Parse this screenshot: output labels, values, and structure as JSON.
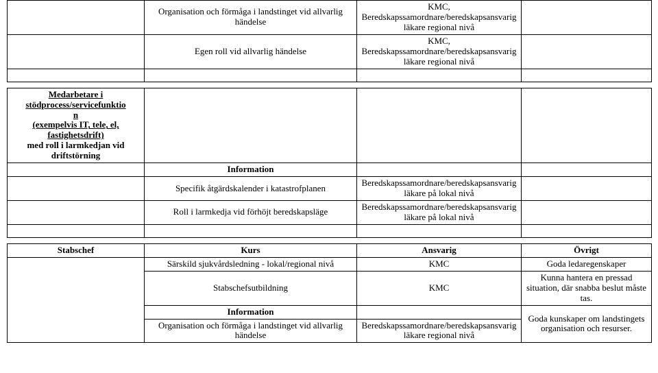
{
  "table1": {
    "rows": [
      {
        "c1": "",
        "c2": "Organisation och förmåga i landstinget vid allvarlig händelse",
        "c3": "KMC, Beredskapssamordnare/beredskapsansvarig läkare regional nivå",
        "c4": ""
      },
      {
        "c1": "",
        "c2": "Egen roll vid allvarlig händelse",
        "c3": "KMC, Beredskapssamordnare/beredskapsansvarig läkare regional nivå",
        "c4": ""
      }
    ]
  },
  "table2": {
    "header_c1_line1": "Medarbetare i",
    "header_c1_line2": "stödprocess/servicefunktio",
    "header_c1_line3": "n",
    "header_c1_line4": "(exempelvis IT, tele, el,",
    "header_c1_line5": "fastighetsdrift)",
    "header_c1_line6": "med roll i larmkedjan vid",
    "header_c1_line7": "driftstörning",
    "info_label": "Information",
    "rows": [
      {
        "c1": "",
        "c2": "Specifik åtgärdskalender i katastrofplanen",
        "c3": "Beredskapssamordnare/beredskapsansvarig läkare på lokal nivå",
        "c4": ""
      },
      {
        "c1": "",
        "c2": "Roll i larmkedja vid förhöjt beredskapsläge",
        "c3": "Beredskapssamordnare/beredskapsansvarig läkare på lokal nivå",
        "c4": ""
      }
    ]
  },
  "table3": {
    "header": {
      "c1": "Stabschef",
      "c2": "Kurs",
      "c3": "Ansvarig",
      "c4": "Övrigt"
    },
    "info_label": "Information",
    "rowA": {
      "c2": "Särskild sjukvårdsledning - lokal/regional nivå",
      "c3": "KMC",
      "c4": "Goda ledaregenskaper"
    },
    "rowB": {
      "c2": "Stabschefsutbildning",
      "c3": "KMC",
      "c4": "Kunna hantera en pressad situation, där snabba beslut måste tas."
    },
    "rowC": {
      "c4": "Goda kunskaper om landstingets organisation och resurser."
    },
    "rowD": {
      "c2": "Organisation och förmåga i landstinget vid allvarlig händelse",
      "c3": "Beredskapssamordnare/beredskapsansvarig läkare regional nivå"
    }
  }
}
